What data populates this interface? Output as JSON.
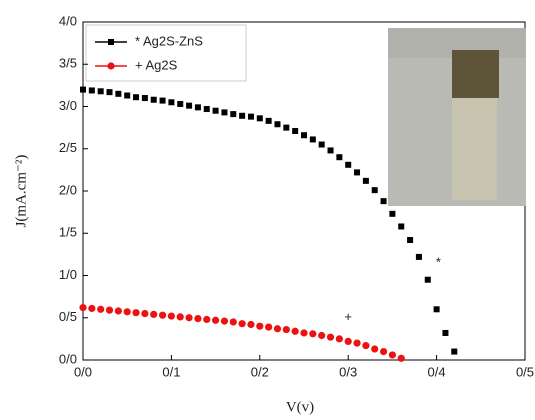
{
  "chart_data": {
    "type": "scatter",
    "x_label": "V(v)",
    "y_label": "J(mA.cm⁻²)",
    "xlim": [
      0,
      0.5
    ],
    "ylim": [
      0,
      4
    ],
    "xticks": [
      {
        "value": 0,
        "label": "0/0"
      },
      {
        "value": 0.1,
        "label": "0/1"
      },
      {
        "value": 0.2,
        "label": "0/2"
      },
      {
        "value": 0.3,
        "label": "0/3"
      },
      {
        "value": 0.4,
        "label": "0/4"
      },
      {
        "value": 0.5,
        "label": "0/5"
      }
    ],
    "yticks": [
      {
        "value": 0,
        "label": "0/0"
      },
      {
        "value": 0.5,
        "label": "0/5"
      },
      {
        "value": 1,
        "label": "1/0"
      },
      {
        "value": 1.5,
        "label": "1/5"
      },
      {
        "value": 2,
        "label": "2/0"
      },
      {
        "value": 2.5,
        "label": "2/5"
      },
      {
        "value": 3,
        "label": "3/0"
      },
      {
        "value": 3.5,
        "label": "3/5"
      },
      {
        "value": 4,
        "label": "4/0"
      }
    ],
    "legend": "upper left",
    "series": [
      {
        "name": "*  Ag2S-ZnS",
        "color": "#000000",
        "marker": "square",
        "x": [
          0,
          0.01,
          0.02,
          0.03,
          0.04,
          0.05,
          0.06,
          0.07,
          0.08,
          0.09,
          0.1,
          0.11,
          0.12,
          0.13,
          0.14,
          0.15,
          0.16,
          0.17,
          0.18,
          0.19,
          0.2,
          0.21,
          0.22,
          0.23,
          0.24,
          0.25,
          0.26,
          0.27,
          0.28,
          0.29,
          0.3,
          0.31,
          0.32,
          0.33,
          0.34,
          0.35,
          0.36,
          0.37,
          0.38,
          0.39,
          0.4,
          0.41,
          0.42
        ],
        "values": [
          3.2,
          3.19,
          3.18,
          3.17,
          3.15,
          3.13,
          3.11,
          3.1,
          3.08,
          3.07,
          3.05,
          3.03,
          3.01,
          2.99,
          2.97,
          2.95,
          2.93,
          2.91,
          2.89,
          2.88,
          2.86,
          2.83,
          2.79,
          2.75,
          2.71,
          2.66,
          2.61,
          2.55,
          2.48,
          2.4,
          2.31,
          2.22,
          2.12,
          2.01,
          1.88,
          1.73,
          1.58,
          1.42,
          1.22,
          0.95,
          0.6,
          0.32,
          0.1
        ]
      },
      {
        "name": "+  Ag2S",
        "color": "#ee1111",
        "marker": "circle",
        "x": [
          0,
          0.01,
          0.02,
          0.03,
          0.04,
          0.05,
          0.06,
          0.07,
          0.08,
          0.09,
          0.1,
          0.11,
          0.12,
          0.13,
          0.14,
          0.15,
          0.16,
          0.17,
          0.18,
          0.19,
          0.2,
          0.21,
          0.22,
          0.23,
          0.24,
          0.25,
          0.26,
          0.27,
          0.28,
          0.29,
          0.3,
          0.31,
          0.32,
          0.33,
          0.34,
          0.35,
          0.36
        ],
        "values": [
          0.62,
          0.61,
          0.6,
          0.59,
          0.58,
          0.57,
          0.56,
          0.55,
          0.54,
          0.53,
          0.52,
          0.51,
          0.5,
          0.49,
          0.48,
          0.47,
          0.46,
          0.45,
          0.43,
          0.42,
          0.4,
          0.39,
          0.37,
          0.36,
          0.34,
          0.32,
          0.31,
          0.29,
          0.27,
          0.25,
          0.22,
          0.2,
          0.17,
          0.13,
          0.1,
          0.06,
          0.02
        ]
      }
    ],
    "annotations": [
      {
        "text": "*",
        "x": 0.402,
        "y": 1.15
      },
      {
        "text": "+",
        "x": 0.3,
        "y": 0.5
      }
    ]
  }
}
